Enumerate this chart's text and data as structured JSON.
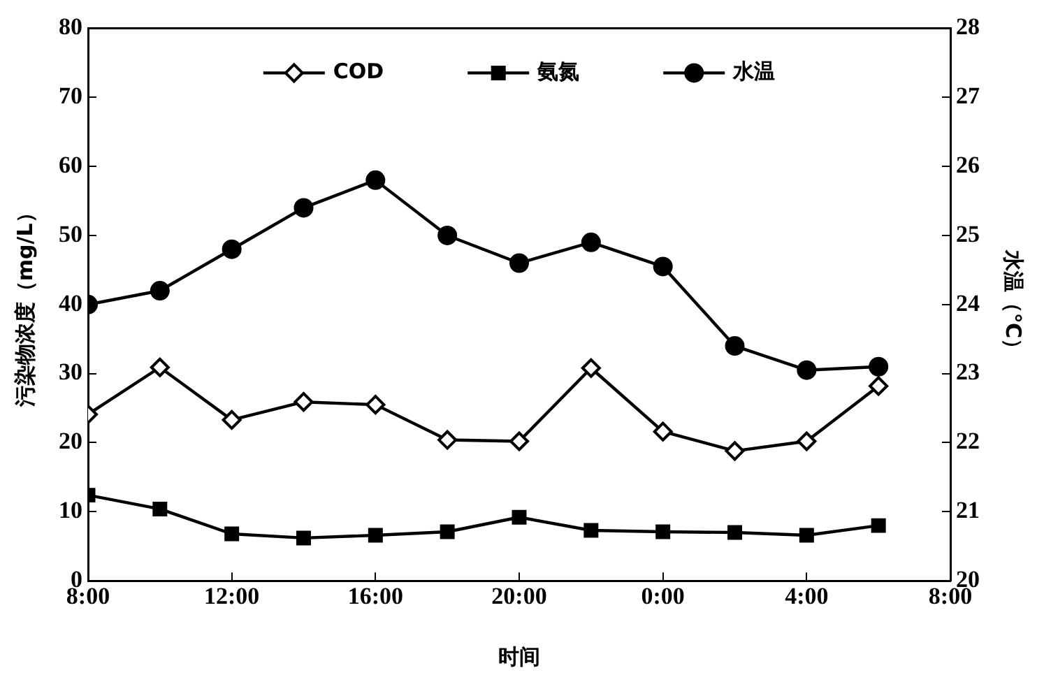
{
  "chart_data": {
    "type": "line",
    "xlabel": "时间",
    "ylabel": "污染物浓度（mg/L）",
    "y2label": "水温（℃）",
    "x": [
      "2000-01-01T08:00",
      "2000-01-01T10:00",
      "2000-01-01T12:00",
      "2000-01-01T14:00",
      "2000-01-01T16:00",
      "2000-01-01T18:00",
      "2000-01-01T20:00",
      "2000-01-01T22:00",
      "2000-01-02T00:00",
      "2000-01-02T02:00",
      "2000-01-02T04:00",
      "2000-01-02T06:00"
    ],
    "xlim": [
      "2000-01-01T08:00",
      "2000-01-02T08:00"
    ],
    "xticks": [
      {
        "value": "2000-01-01T08:00",
        "label": "8:00"
      },
      {
        "value": "2000-01-01T12:00",
        "label": "12:00"
      },
      {
        "value": "2000-01-01T16:00",
        "label": "16:00"
      },
      {
        "value": "2000-01-01T20:00",
        "label": "20:00"
      },
      {
        "value": "2000-01-02T00:00",
        "label": "0:00"
      },
      {
        "value": "2000-01-02T04:00",
        "label": "4:00"
      },
      {
        "value": "2000-01-02T08:00",
        "label": "8:00"
      }
    ],
    "ylim": [
      0,
      80
    ],
    "yticks": [
      0,
      10,
      20,
      30,
      40,
      50,
      60,
      70,
      80
    ],
    "y2lim": [
      20,
      28
    ],
    "y2ticks": [
      20,
      21,
      22,
      23,
      24,
      25,
      26,
      27,
      28
    ],
    "series": [
      {
        "name": "COD",
        "color": "#000000",
        "marker": "diamond",
        "values": [
          24.1,
          30.9,
          23.3,
          25.9,
          25.5,
          20.4,
          20.2,
          30.8,
          21.6,
          18.8,
          20.2,
          28.2
        ]
      },
      {
        "name": "氨氮",
        "color": "#000000",
        "marker": "square",
        "values": [
          12.4,
          10.4,
          6.8,
          6.2,
          6.6,
          7.1,
          9.2,
          7.3,
          7.1,
          7.0,
          6.6,
          8.0
        ]
      },
      {
        "name": "水温",
        "color": "#000000",
        "marker": "circle",
        "axis": "y2",
        "values": [
          24.0,
          24.2,
          24.8,
          25.4,
          25.8,
          25.0,
          24.6,
          24.9,
          24.55,
          23.4,
          23.05,
          23.1
        ]
      }
    ],
    "grid": false,
    "legend": "top",
    "line_style": "solid"
  }
}
